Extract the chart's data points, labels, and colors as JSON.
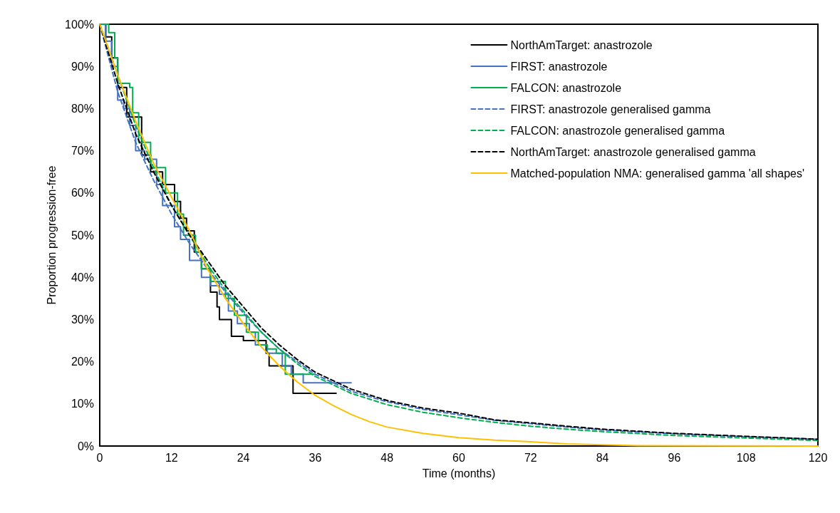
{
  "chart_data": {
    "type": "line",
    "xlabel": "Time (months)",
    "ylabel": "Proportion progression-free",
    "xlim": [
      0,
      120
    ],
    "xticks": [
      0,
      12,
      24,
      36,
      48,
      60,
      72,
      84,
      96,
      108,
      120
    ],
    "ylim": [
      0,
      100
    ],
    "yticks": [
      {
        "value": 0,
        "label": "0%"
      },
      {
        "value": 10,
        "label": "10%"
      },
      {
        "value": 20,
        "label": "20%"
      },
      {
        "value": 30,
        "label": "30%"
      },
      {
        "value": 40,
        "label": "40%"
      },
      {
        "value": 50,
        "label": "50%"
      },
      {
        "value": 60,
        "label": "60%"
      },
      {
        "value": 70,
        "label": "70%"
      },
      {
        "value": 80,
        "label": "80%"
      },
      {
        "value": 90,
        "label": "90%"
      },
      {
        "value": 100,
        "label": "100%"
      }
    ],
    "grid": false,
    "legend": "top right",
    "marker": "none",
    "series": [
      {
        "name": "NorthAmTarget: anastrozole",
        "type": "step",
        "color": "#000000",
        "line_style": "solid",
        "x": [
          0,
          1,
          2,
          3,
          4.5,
          7,
          8.5,
          10.5,
          12.5,
          13.5,
          14.5,
          15.8,
          17,
          18.5,
          19.6,
          20,
          22,
          24,
          27.8,
          28.3,
          32.3,
          39.5
        ],
        "values": [
          100,
          97,
          92,
          85,
          78,
          69,
          65,
          62,
          58,
          54,
          51,
          46,
          42,
          36.5,
          33,
          30,
          26,
          25,
          22,
          19,
          12.5,
          12.5
        ]
      },
      {
        "name": "FIRST: anastrozole",
        "type": "step",
        "color": "#4472c4",
        "line_style": "solid",
        "x": [
          0,
          1,
          2,
          3,
          4,
          5,
          6,
          7.5,
          9.5,
          10.5,
          12.5,
          13.5,
          15,
          17,
          18.5,
          20,
          21.5,
          23,
          25,
          26,
          28,
          30.5,
          32,
          34,
          42
        ],
        "values": [
          100,
          96,
          90,
          82,
          80,
          76,
          70,
          68,
          62,
          57,
          52,
          49,
          44,
          40,
          38,
          36,
          32,
          29,
          27,
          24,
          22,
          19,
          17,
          15,
          15
        ]
      },
      {
        "name": "FALCON: anastrozole",
        "type": "step",
        "color": "#00b050",
        "line_style": "solid",
        "x": [
          0,
          1.5,
          2.5,
          3,
          5,
          5.5,
          6.5,
          8.5,
          11,
          13,
          14,
          16,
          17,
          18.5,
          21,
          22.5,
          24.5,
          26.5,
          28,
          29.5,
          31,
          36
        ],
        "values": [
          100,
          98,
          92,
          86,
          85,
          79,
          72,
          66,
          60,
          55,
          50,
          46,
          42,
          39,
          35,
          31,
          27,
          24,
          23,
          22,
          17,
          17
        ]
      },
      {
        "name": "FIRST: anastrozole generalised gamma",
        "type": "line",
        "color": "#4472c4",
        "line_style": "dashed",
        "x": [
          0,
          3,
          6,
          9,
          12,
          15,
          18,
          21,
          24,
          27,
          30,
          33,
          36,
          42,
          48,
          54,
          60,
          66,
          72,
          78,
          84,
          96,
          108,
          120
        ],
        "values": [
          100,
          84,
          72,
          63,
          55,
          48,
          42,
          36.5,
          31.5,
          27,
          23,
          20,
          17,
          13,
          10.5,
          8.7,
          7.4,
          6.1,
          5.3,
          4.5,
          3.8,
          2.9,
          2.2,
          1.6
        ]
      },
      {
        "name": "FALCON: anastrozole generalised gamma",
        "type": "line",
        "color": "#00b050",
        "line_style": "dashed",
        "x": [
          0,
          3,
          6,
          9,
          12,
          15,
          18,
          21,
          24,
          27,
          30,
          33,
          36,
          42,
          48,
          54,
          60,
          66,
          72,
          78,
          84,
          96,
          108,
          120
        ],
        "values": [
          100,
          88,
          76,
          66,
          57,
          50,
          43,
          37,
          32,
          27,
          23,
          19.5,
          16.5,
          12.5,
          9.8,
          8,
          6.7,
          5.6,
          4.7,
          4,
          3.4,
          2.5,
          1.9,
          1.3
        ]
      },
      {
        "name": "NorthAmTarget: anastrozole generalised gamma",
        "type": "line",
        "color": "#000000",
        "line_style": "dashed",
        "x": [
          0,
          3,
          6,
          9,
          12,
          15,
          18,
          21,
          24,
          27,
          30,
          33,
          36,
          42,
          48,
          54,
          60,
          66,
          72,
          78,
          84,
          96,
          108,
          120
        ],
        "values": [
          100,
          86,
          74,
          65,
          57,
          50,
          44,
          38,
          33,
          28,
          24,
          20.5,
          17.5,
          13.5,
          10.8,
          9,
          7.8,
          6.2,
          5.5,
          4.7,
          4,
          3,
          2.3,
          1.6
        ]
      },
      {
        "name": "Matched-population NMA: generalised gamma 'all shapes'",
        "type": "line",
        "color": "#ffc000",
        "line_style": "solid",
        "x": [
          0,
          3,
          6,
          9,
          12,
          15,
          18,
          21,
          24,
          27,
          30,
          33,
          36,
          39,
          42,
          45,
          48,
          54,
          60,
          66,
          72,
          78,
          84,
          90,
          120
        ],
        "values": [
          100,
          88,
          77,
          67,
          59,
          51,
          42,
          35,
          29,
          23.5,
          19,
          15.2,
          12,
          9.6,
          7.5,
          5.8,
          4.5,
          3,
          2,
          1.4,
          1,
          0.5,
          0.3,
          0.1,
          0
        ]
      }
    ]
  }
}
